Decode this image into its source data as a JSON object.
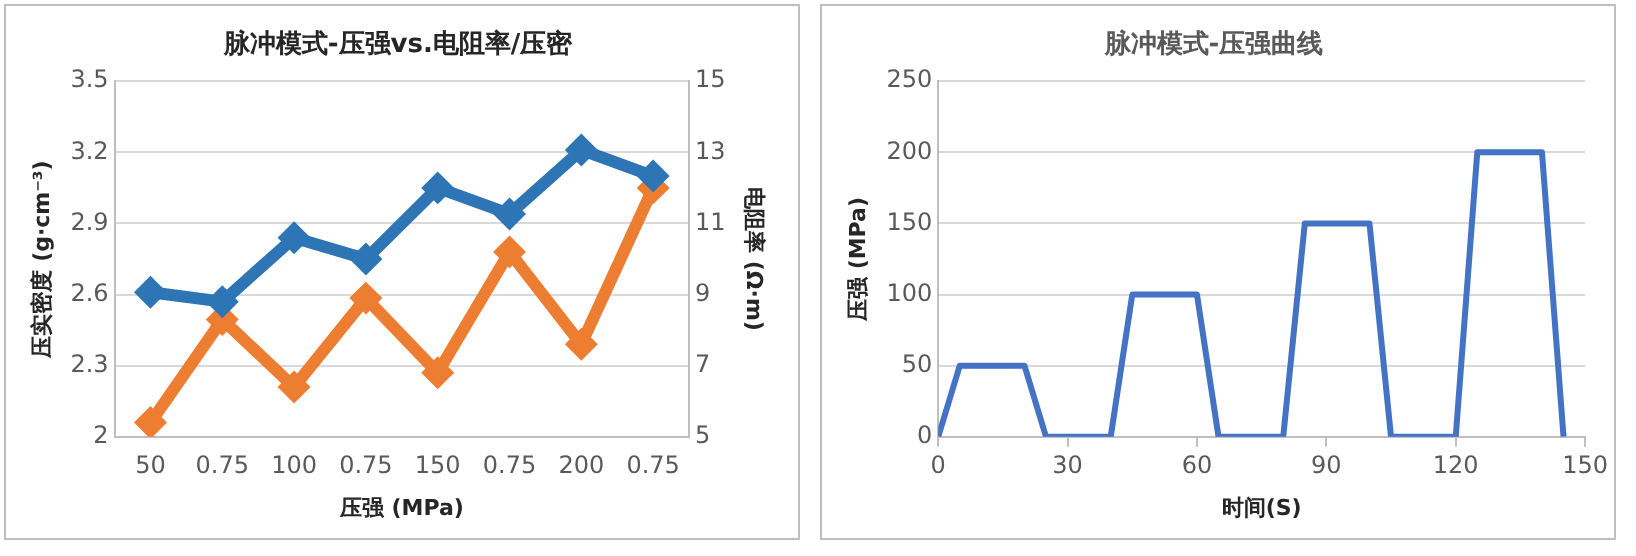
{
  "chart_data": [
    {
      "type": "line",
      "title": "脉冲模式-压强vs.电阻率/压密",
      "xlabel": "压强 (MPa)",
      "ylabel": "压实密度 (g·cm⁻³)",
      "y2label": "电阻率 (Ω·m)",
      "categories": [
        "50",
        "0.75",
        "100",
        "0.75",
        "150",
        "0.75",
        "200",
        "0.75"
      ],
      "series": [
        {
          "color": "#2e75b6",
          "values": [
            2.61,
            2.57,
            2.84,
            2.75,
            3.05,
            2.94,
            3.21,
            3.1
          ]
        },
        {
          "color": "#ed7d31",
          "axis": "y2",
          "values": [
            5.4,
            8.3,
            6.4,
            8.9,
            6.8,
            10.2,
            7.6,
            12.0
          ]
        }
      ],
      "ylim": [
        2,
        3.5
      ],
      "yticks": [
        2,
        2.3,
        2.6,
        2.9,
        3.2,
        3.5
      ],
      "y2lim": [
        5,
        15
      ],
      "y2ticks": [
        5,
        7,
        9,
        11,
        13,
        15
      ],
      "grid": "y",
      "legend": false,
      "marker": "diamond",
      "line_style": "solid"
    },
    {
      "type": "line",
      "title": "脉冲模式-压强曲线",
      "xlabel": "时间(S)",
      "ylabel": "压强 (MPa)",
      "x": [
        0,
        5,
        20,
        25,
        40,
        45,
        60,
        65,
        80,
        85,
        100,
        105,
        120,
        125,
        140,
        145
      ],
      "series": [
        {
          "color": "#4472c4",
          "values": [
            0,
            50,
            50,
            0,
            0,
            100,
            100,
            0,
            0,
            150,
            150,
            0,
            0,
            200,
            200,
            0
          ]
        }
      ],
      "xlim": [
        0,
        150
      ],
      "xticks": [
        0,
        30,
        60,
        90,
        120,
        150
      ],
      "ylim": [
        0,
        250
      ],
      "yticks": [
        0,
        50,
        100,
        150,
        200,
        250
      ],
      "grid": "y",
      "legend": false,
      "marker": "none",
      "line_style": "solid"
    }
  ]
}
